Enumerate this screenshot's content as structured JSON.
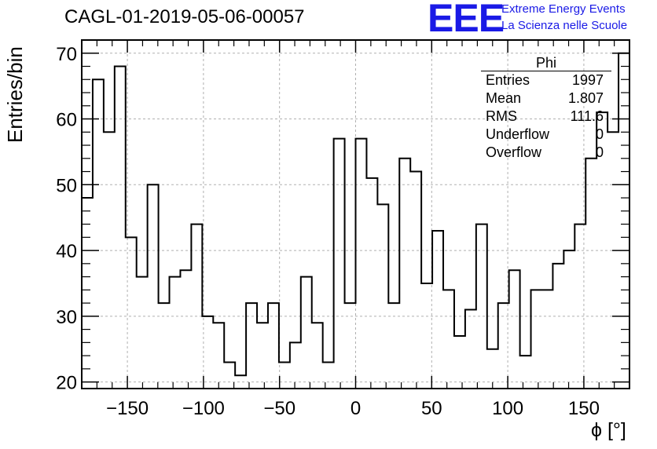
{
  "title": "CAGL-01-2019-05-06-00057",
  "logo": {
    "text": "EEE",
    "line1": "Extreme Energy Events",
    "line2": "La Scienza nelle Scuole",
    "color": "#1a1ae6"
  },
  "stats": {
    "name": "Phi",
    "rows": [
      {
        "key": "Entries",
        "value": "1997"
      },
      {
        "key": "Mean",
        "value": "1.807"
      },
      {
        "key": "RMS",
        "value": "111.6"
      },
      {
        "key": "Underflow",
        "value": "0"
      },
      {
        "key": "Overflow",
        "value": "0"
      }
    ]
  },
  "chart_data": {
    "type": "histogram",
    "title": "CAGL-01-2019-05-06-00057",
    "xlabel": "ϕ [°]",
    "ylabel": "Entries/bin",
    "xlim": [
      -180,
      180
    ],
    "ylim": [
      19,
      72
    ],
    "bin_width": 7.2,
    "x_ticks": [
      -150,
      -100,
      -50,
      0,
      50,
      100,
      150
    ],
    "x_tick_labels": [
      "−150",
      "−100",
      "−50",
      "0",
      "50",
      "100",
      "150"
    ],
    "y_ticks": [
      20,
      30,
      40,
      50,
      60,
      70
    ],
    "y_tick_labels": [
      "20",
      "30",
      "40",
      "50",
      "60",
      "70"
    ],
    "values": [
      48,
      66,
      58,
      68,
      42,
      36,
      50,
      32,
      36,
      37,
      44,
      30,
      29,
      23,
      21,
      32,
      29,
      32,
      23,
      26,
      36,
      29,
      23,
      57,
      32,
      57,
      51,
      47,
      32,
      54,
      52,
      35,
      43,
      34,
      27,
      31,
      44,
      25,
      32,
      37,
      24,
      34,
      34,
      38,
      40,
      44,
      54,
      61,
      58,
      70
    ],
    "grid": true,
    "line_color": "#000000"
  }
}
